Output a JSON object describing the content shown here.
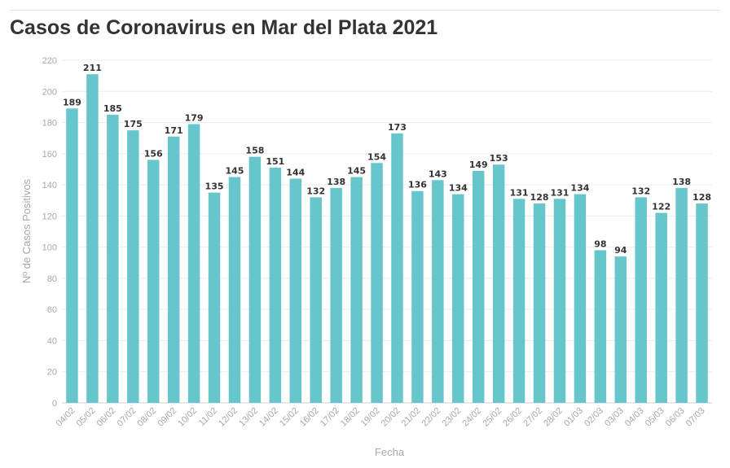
{
  "chart_data": {
    "type": "bar",
    "title": "Casos de Coronavirus en Mar del Plata 2021",
    "xlabel": "Fecha",
    "ylabel": "Nº de Casos Positivos",
    "ylim": [
      0,
      220
    ],
    "yticks": [
      0,
      20,
      40,
      60,
      80,
      100,
      120,
      140,
      160,
      180,
      200,
      220
    ],
    "grid": true,
    "bar_color": "#67c5cc",
    "categories": [
      "04/02",
      "05/02",
      "06/02",
      "07/02",
      "08/02",
      "09/02",
      "10/02",
      "11/02",
      "12/02",
      "13/02",
      "14/02",
      "15/02",
      "16/02",
      "17/02",
      "18/02",
      "19/02",
      "20/02",
      "21/02",
      "22/02",
      "23/02",
      "24/02",
      "25/02",
      "26/02",
      "27/02",
      "28/02",
      "01/03",
      "02/03",
      "03/03",
      "04/03",
      "05/03",
      "06/03",
      "07/03"
    ],
    "values": [
      189,
      211,
      185,
      175,
      156,
      171,
      179,
      135,
      145,
      158,
      151,
      144,
      132,
      138,
      145,
      154,
      173,
      136,
      143,
      134,
      149,
      153,
      131,
      128,
      131,
      134,
      98,
      94,
      132,
      122,
      138,
      128
    ]
  }
}
